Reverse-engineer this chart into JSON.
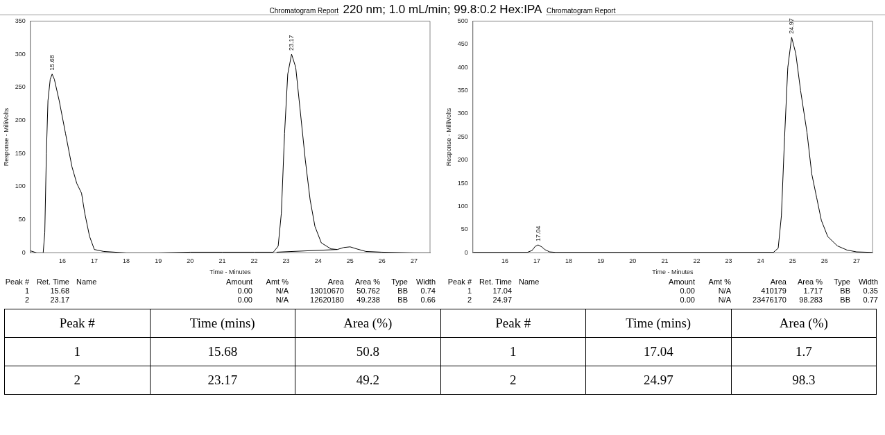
{
  "chart_data": [
    {
      "type": "line",
      "title": "Chromatogram Report",
      "subtitle": "220 nm; 1.0 mL/min; 99.8:0.2 Hex:IPA",
      "xlabel": "Time - Minutes",
      "ylabel": "Response - MilliVolts",
      "xlim": [
        15,
        27.5
      ],
      "xticks": [
        16,
        17,
        18,
        19,
        20,
        21,
        22,
        23,
        24,
        25,
        26,
        27
      ],
      "ylim": [
        0,
        350
      ],
      "yticks": [
        0,
        50,
        100,
        150,
        200,
        250,
        300,
        350
      ],
      "grid": false,
      "legend": false,
      "marker": "none",
      "series": [
        {
          "color": "#000000",
          "x": [
            15,
            15.2,
            15.4,
            15.45,
            15.5,
            15.55,
            15.62,
            15.68,
            15.75,
            15.9,
            16.1,
            16.3,
            16.45,
            16.6,
            16.7,
            16.85,
            17.0,
            17.3,
            18,
            19,
            20,
            21,
            22,
            22.6,
            22.75,
            22.85,
            22.95,
            23.05,
            23.17,
            23.3,
            23.45,
            23.6,
            23.75,
            23.9,
            24.1,
            24.4,
            24.6,
            24.8,
            25.0,
            25.2,
            25.5,
            26,
            27,
            27.5
          ],
          "values": [
            3,
            0,
            0,
            30,
            150,
            230,
            262,
            270,
            262,
            230,
            180,
            130,
            105,
            90,
            60,
            25,
            5,
            2,
            0,
            0,
            1,
            1,
            1,
            1,
            10,
            60,
            180,
            270,
            300,
            280,
            210,
            140,
            80,
            40,
            15,
            6,
            5,
            8,
            9,
            6,
            2,
            1,
            0,
            0
          ]
        },
        {
          "color": "#000000",
          "x": [
            22.7,
            24.6
          ],
          "values": [
            1,
            5
          ]
        }
      ],
      "annotations": [
        {
          "text": "15.68",
          "x": 15.68,
          "y": 270
        },
        {
          "text": "23.17",
          "x": 23.17,
          "y": 300
        },
        "Peak #",
        "Ret. Time",
        "Name",
        "Amount",
        "Amt %",
        "Area",
        "Area %",
        "Type",
        "Width",
        "1",
        "15.68",
        "0.00",
        "N/A",
        "13010670",
        "50.762",
        "BB",
        "0.74",
        "2",
        "23.17",
        "0.00",
        "N/A",
        "12620180",
        "49.238",
        "BB",
        "0.66"
      ]
    },
    {
      "type": "line",
      "title": "Chromatogram Report",
      "xlabel": "Time - Minutes",
      "ylabel": "Response - MilliVolts",
      "xlim": [
        15,
        27.5
      ],
      "xticks": [
        16,
        17,
        18,
        19,
        20,
        21,
        22,
        23,
        24,
        25,
        26,
        27
      ],
      "ylim": [
        0,
        500
      ],
      "yticks": [
        0,
        50,
        100,
        150,
        200,
        250,
        300,
        350,
        400,
        450,
        500
      ],
      "grid": false,
      "legend": false,
      "marker": "none",
      "series": [
        {
          "color": "#000000",
          "x": [
            15,
            16.7,
            16.85,
            16.95,
            17.04,
            17.15,
            17.25,
            17.4,
            17.6,
            24.4,
            24.55,
            24.65,
            24.75,
            24.85,
            24.97,
            25.1,
            25.25,
            25.45,
            25.6,
            25.75,
            25.9,
            26.1,
            26.4,
            26.7,
            27,
            27.5
          ],
          "values": [
            1,
            1,
            5,
            14,
            17,
            13,
            7,
            2,
            1,
            1,
            10,
            80,
            250,
            400,
            465,
            430,
            350,
            260,
            170,
            120,
            70,
            35,
            15,
            6,
            2,
            1
          ]
        }
      ],
      "annotations": [
        {
          "text": "17.04",
          "x": 17.04,
          "y": 17
        },
        {
          "text": "24.97",
          "x": 24.97,
          "y": 465
        },
        "Peak #",
        "Ret. Time",
        "Name",
        "Amount",
        "Amt %",
        "Area",
        "Area %",
        "Type",
        "Width",
        "1",
        "17.04",
        "0.00",
        "N/A",
        "410179",
        "1.717",
        "BB",
        "0.35",
        "2",
        "24.97",
        "0.00",
        "N/A",
        "23476170",
        "98.283",
        "BB",
        "0.77"
      ]
    },
    {
      "type": "other",
      "annotations": [
        "Peak #",
        "Time (mins)",
        "Area (%)",
        "Peak #",
        "Time (mins)",
        "Area (%)",
        "1",
        "15.68",
        "50.8",
        "1",
        "17.04",
        "1.7",
        "2",
        "23.17",
        "49.2",
        "2",
        "24.97",
        "98.3"
      ]
    }
  ]
}
